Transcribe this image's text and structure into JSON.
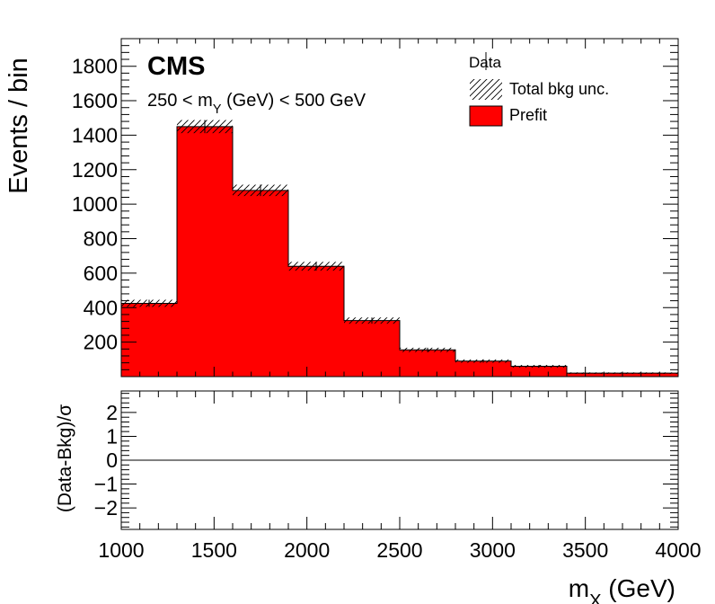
{
  "chart_data": {
    "type": "bar",
    "experiment_label": "CMS",
    "selection_label": "250 < m_Y (GeV) < 500 GeV",
    "xlabel": "m_X (GeV)",
    "ylabel": "Events / bin",
    "ratio_ylabel": "(Data-Bkg)/σ",
    "xlim": [
      1000,
      4000
    ],
    "ylim": [
      0,
      1960
    ],
    "ratio_ylim": [
      -2.9,
      2.9
    ],
    "x_ticks": [
      1000,
      1500,
      2000,
      2500,
      3000,
      3500,
      4000
    ],
    "y_ticks": [
      200,
      400,
      600,
      800,
      1000,
      1200,
      1400,
      1600,
      1800
    ],
    "ratio_y_ticks": [
      -2,
      -1,
      0,
      1,
      2
    ],
    "bin_edges": [
      1000,
      1300,
      1600,
      1900,
      2200,
      2500,
      2800,
      3100,
      3400,
      4000
    ],
    "series": [
      {
        "name": "Prefit",
        "values": [
          425,
          1450,
          1080,
          640,
          325,
          155,
          90,
          60,
          20
        ]
      },
      {
        "name": "Data",
        "values": [
          425,
          1450,
          1080,
          640,
          325,
          155,
          90,
          60,
          20
        ]
      }
    ],
    "ratio_values": [
      0,
      0,
      0,
      0,
      0,
      0,
      0,
      0,
      0
    ],
    "legend": {
      "placement": "top-right",
      "entries": [
        "Data",
        "Total bkg unc.",
        "Prefit"
      ]
    },
    "colors": {
      "prefit": "#ff0000",
      "data": "#000000",
      "axis": "#000000"
    },
    "grid": false
  }
}
